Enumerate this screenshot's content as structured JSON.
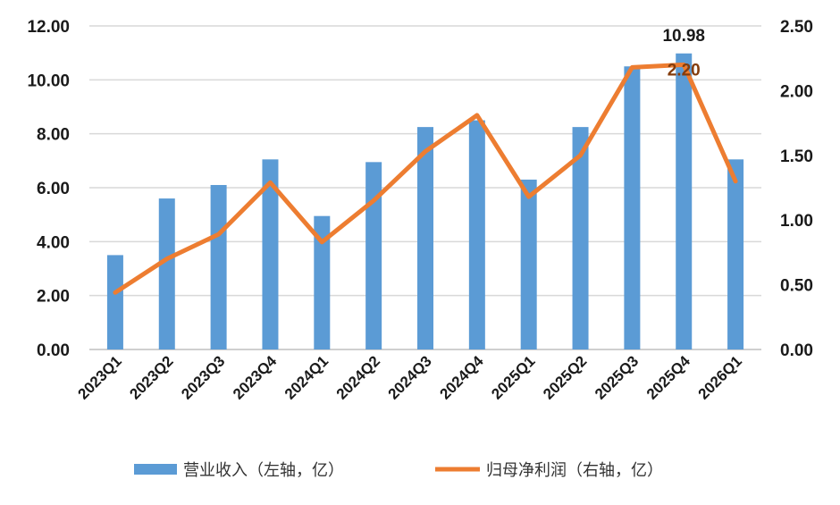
{
  "chart_data": {
    "type": "bar",
    "categories": [
      "2023Q1",
      "2023Q2",
      "2023Q3",
      "2023Q4",
      "2024Q1",
      "2024Q2",
      "2024Q3",
      "2024Q4",
      "2025Q1",
      "2025Q2",
      "2025Q3",
      "2025Q4",
      "2026Q1"
    ],
    "series": [
      {
        "name": "营业收入（左轴，亿）",
        "type": "bar",
        "axis": "left",
        "color": "#5B9BD5",
        "values": [
          3.5,
          5.6,
          6.1,
          7.05,
          4.95,
          6.95,
          8.25,
          8.5,
          6.3,
          8.25,
          10.5,
          10.98,
          7.05
        ]
      },
      {
        "name": "归母净利润（右轴，亿）",
        "type": "line",
        "axis": "right",
        "color": "#ED7D31",
        "values": [
          0.44,
          0.7,
          0.89,
          1.29,
          0.83,
          1.15,
          1.53,
          1.81,
          1.18,
          1.5,
          2.18,
          2.2,
          1.3
        ]
      }
    ],
    "data_labels": [
      {
        "series": 0,
        "index": 11,
        "text": "10.98"
      },
      {
        "series": 1,
        "index": 11,
        "text": "2.20"
      }
    ],
    "y_left": {
      "ylim": [
        0,
        12
      ],
      "ticks": [
        "0.00",
        "2.00",
        "4.00",
        "6.00",
        "8.00",
        "10.00",
        "12.00"
      ]
    },
    "y_right": {
      "ylim": [
        0,
        2.5
      ],
      "ticks": [
        "0.00",
        "0.50",
        "1.00",
        "1.50",
        "2.00",
        "2.50"
      ]
    },
    "grid": true,
    "legend_position": "bottom",
    "title": "",
    "xlabel": "",
    "ylabel": ""
  }
}
